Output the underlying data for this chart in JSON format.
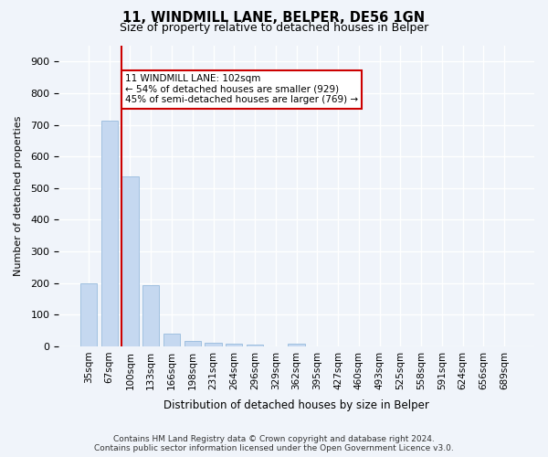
{
  "title1": "11, WINDMILL LANE, BELPER, DE56 1GN",
  "title2": "Size of property relative to detached houses in Belper",
  "xlabel": "Distribution of detached houses by size in Belper",
  "ylabel": "Number of detached properties",
  "categories": [
    "35sqm",
    "67sqm",
    "100sqm",
    "133sqm",
    "166sqm",
    "198sqm",
    "231sqm",
    "264sqm",
    "296sqm",
    "329sqm",
    "362sqm",
    "395sqm",
    "427sqm",
    "460sqm",
    "493sqm",
    "525sqm",
    "558sqm",
    "591sqm",
    "624sqm",
    "656sqm",
    "689sqm"
  ],
  "values": [
    200,
    714,
    537,
    192,
    40,
    17,
    12,
    8,
    5,
    0,
    7,
    0,
    0,
    0,
    0,
    0,
    0,
    0,
    0,
    0,
    0
  ],
  "bar_color": "#c5d8f0",
  "bar_edge_color": "#a0c0e0",
  "vline_x": 2,
  "vline_color": "#cc0000",
  "annotation_text": "11 WINDMILL LANE: 102sqm\n← 54% of detached houses are smaller (929)\n45% of semi-detached houses are larger (769) →",
  "annotation_box_color": "white",
  "annotation_box_edgecolor": "#cc0000",
  "ylim": [
    0,
    950
  ],
  "yticks": [
    0,
    100,
    200,
    300,
    400,
    500,
    600,
    700,
    800,
    900
  ],
  "footer": "Contains HM Land Registry data © Crown copyright and database right 2024.\nContains public sector information licensed under the Open Government Licence v3.0.",
  "bg_color": "#f0f4fa",
  "plot_bg_color": "#f0f4fa"
}
